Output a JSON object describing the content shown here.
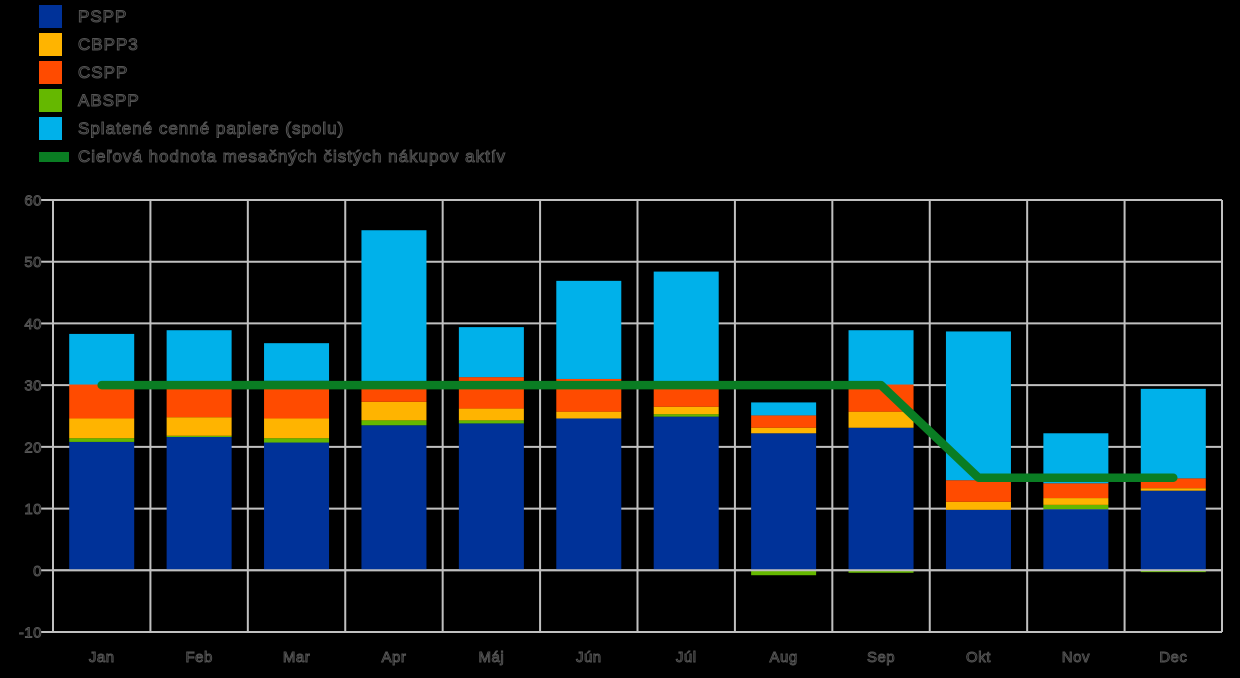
{
  "legend": {
    "items": [
      {
        "label": "PSPP",
        "color": "#003299",
        "swatch": "square"
      },
      {
        "label": "CBPP3",
        "color": "#FFB400",
        "swatch": "square"
      },
      {
        "label": "CSPP",
        "color": "#FF4B00",
        "swatch": "square"
      },
      {
        "label": "ABSPP",
        "color": "#65B800",
        "swatch": "square"
      },
      {
        "label": "Splatené cenné papiere (spolu)",
        "color": "#00B1EA",
        "swatch": "square"
      },
      {
        "label": "Cieľová hodnota mesačných čistých nákupov aktív",
        "color": "#0A7D23",
        "swatch": "line"
      }
    ]
  },
  "chart_data": {
    "type": "bar",
    "stacked": true,
    "categories": [
      "Jan",
      "Feb",
      "Mar",
      "Apr",
      "Máj",
      "Jún",
      "Júl",
      "Aug",
      "Sep",
      "Okt",
      "Nov",
      "Dec"
    ],
    "series": [
      {
        "name": "PSPP",
        "color": "#003299",
        "values": [
          20.8,
          21.6,
          20.7,
          23.5,
          23.8,
          24.6,
          24.9,
          22.2,
          23.1,
          9.8,
          9.9,
          12.9
        ]
      },
      {
        "name": "ABSPP",
        "color": "#65B800",
        "values": [
          0.6,
          0.2,
          0.7,
          0.8,
          0.5,
          0.0,
          0.4,
          -0.8,
          -0.4,
          0.0,
          0.7,
          -0.3
        ]
      },
      {
        "name": "CBPP3",
        "color": "#FFB400",
        "values": [
          3.2,
          3.0,
          3.2,
          3.0,
          1.9,
          1.1,
          1.2,
          0.9,
          2.6,
          1.3,
          1.1,
          0.4
        ]
      },
      {
        "name": "CSPP",
        "color": "#FF4B00",
        "values": [
          5.5,
          5.2,
          6.1,
          2.9,
          5.1,
          5.3,
          3.5,
          2.0,
          4.4,
          3.5,
          2.4,
          1.6
        ]
      },
      {
        "name": "Splatené cenné papiere (spolu)",
        "color": "#00B1EA",
        "values": [
          8.2,
          8.9,
          6.1,
          24.9,
          8.1,
          15.9,
          18.4,
          2.1,
          8.8,
          24.1,
          8.1,
          14.5
        ]
      }
    ],
    "line_series": {
      "name": "Cieľová hodnota mesačných čistých nákupov aktív",
      "color": "#0A7D23",
      "values": [
        30,
        30,
        30,
        30,
        30,
        30,
        30,
        30,
        30,
        15,
        15,
        15
      ]
    },
    "ylim": [
      -10,
      60
    ],
    "yticks": [
      60,
      50,
      40,
      30,
      20,
      10,
      0,
      -10
    ],
    "grid": true,
    "legend_position": "top-left",
    "plot_background": "#000000",
    "gridline_color": "#C0C0C0"
  }
}
